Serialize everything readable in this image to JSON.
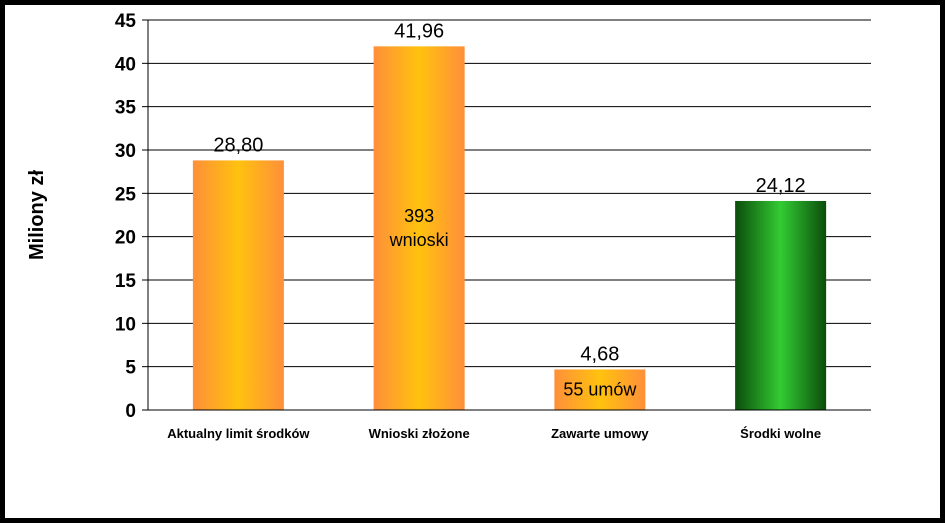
{
  "chart_data": {
    "type": "bar",
    "ylabel": "Miliony zł",
    "ylim": [
      0,
      45
    ],
    "yticks": [
      0,
      5,
      10,
      15,
      20,
      25,
      30,
      35,
      40,
      45
    ],
    "grid": true,
    "categories": [
      "Aktualny limit środków",
      "Wnioski złożone",
      "Zawarte umowy",
      "Środki wolne"
    ],
    "values": [
      28.8,
      41.96,
      4.68,
      24.12
    ],
    "value_labels": [
      "28,80",
      "41,96",
      "4,68",
      "24,12"
    ],
    "annotations": [
      {
        "category_index": 1,
        "lines": [
          "393",
          "wnioski"
        ]
      },
      {
        "category_index": 2,
        "lines": [
          "55 umów"
        ]
      }
    ],
    "colors": {
      "orange_center": "#ffc20e",
      "orange_edge": "#ff8f3a",
      "green_center": "#33cc33",
      "green_edge": "#0b4d0b",
      "grid": "#000000"
    },
    "bar_color_scheme": [
      "orange",
      "orange",
      "orange",
      "green"
    ]
  }
}
